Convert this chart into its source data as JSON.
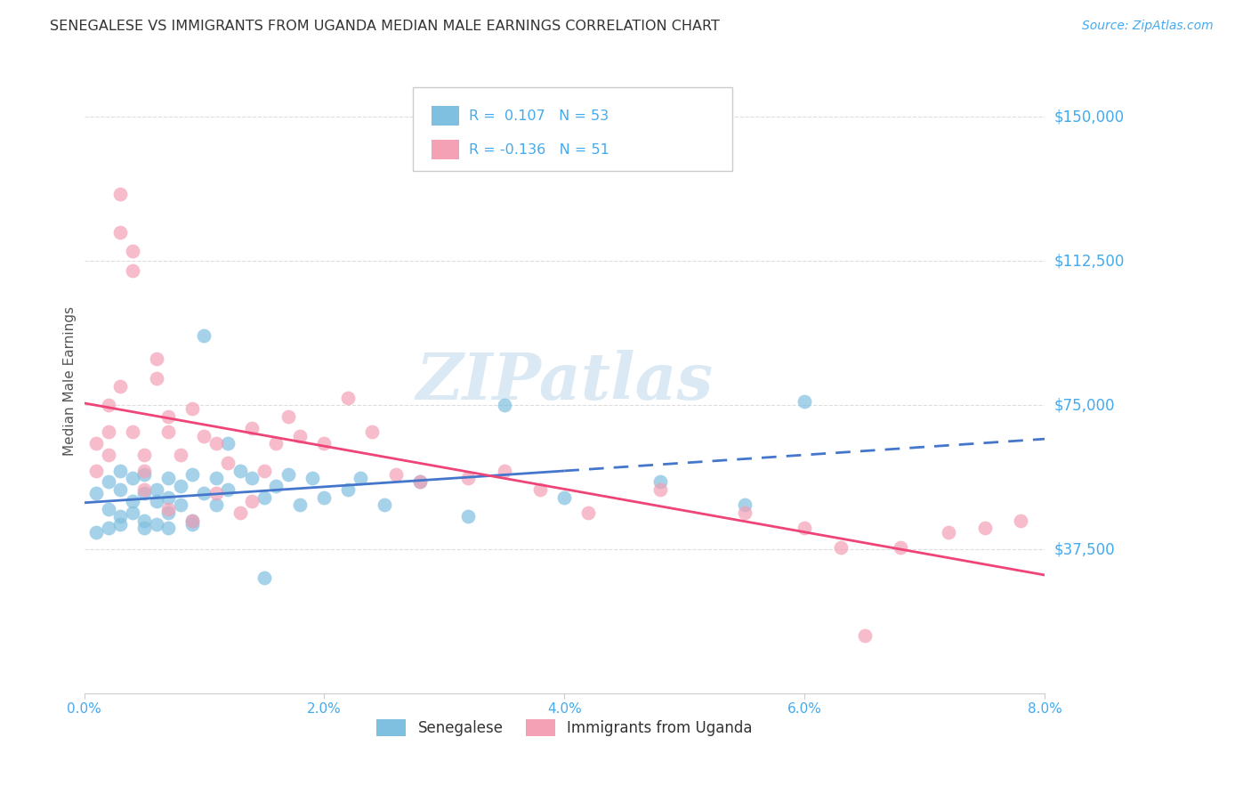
{
  "title": "SENEGALESE VS IMMIGRANTS FROM UGANDA MEDIAN MALE EARNINGS CORRELATION CHART",
  "source": "Source: ZipAtlas.com",
  "ylabel": "Median Male Earnings",
  "ytick_labels": [
    "$37,500",
    "$75,000",
    "$112,500",
    "$150,000"
  ],
  "ytick_values": [
    37500,
    75000,
    112500,
    150000
  ],
  "ymin": 0,
  "ymax": 162500,
  "xmin": 0.0,
  "xmax": 0.08,
  "xtick_positions": [
    0.0,
    0.02,
    0.04,
    0.06,
    0.08
  ],
  "xtick_labels": [
    "0.0%",
    "2.0%",
    "4.0%",
    "6.0%",
    "8.0%"
  ],
  "r_senegalese": 0.107,
  "n_senegalese": 53,
  "r_uganda": -0.136,
  "n_uganda": 51,
  "color_senegalese": "#7fbfdf",
  "color_uganda": "#f4a0b5",
  "color_trend_senegalese": "#4477cc",
  "color_trend_uganda": "#ee4477",
  "color_axis_labels": "#44aaee",
  "color_title": "#333333",
  "watermark_text": "ZIPatlas",
  "legend_label_senegalese": "R =  0.107   N = 53",
  "legend_label_uganda": "R = -0.136   N = 51",
  "bottom_legend_senegalese": "Senegalese",
  "bottom_legend_uganda": "Immigrants from Uganda",
  "senegalese_x": [
    0.001,
    0.002,
    0.002,
    0.003,
    0.003,
    0.003,
    0.004,
    0.004,
    0.004,
    0.005,
    0.005,
    0.005,
    0.006,
    0.006,
    0.006,
    0.007,
    0.007,
    0.007,
    0.008,
    0.008,
    0.009,
    0.009,
    0.01,
    0.01,
    0.011,
    0.011,
    0.012,
    0.012,
    0.013,
    0.014,
    0.015,
    0.016,
    0.017,
    0.018,
    0.019,
    0.02,
    0.022,
    0.023,
    0.025,
    0.028,
    0.032,
    0.035,
    0.04,
    0.048,
    0.055,
    0.06,
    0.001,
    0.002,
    0.003,
    0.005,
    0.007,
    0.009,
    0.015
  ],
  "senegalese_y": [
    52000,
    55000,
    48000,
    53000,
    46000,
    58000,
    50000,
    47000,
    56000,
    52000,
    45000,
    57000,
    50000,
    53000,
    44000,
    56000,
    51000,
    47000,
    54000,
    49000,
    57000,
    45000,
    93000,
    52000,
    56000,
    49000,
    65000,
    53000,
    58000,
    56000,
    51000,
    54000,
    57000,
    49000,
    56000,
    51000,
    53000,
    56000,
    49000,
    55000,
    46000,
    75000,
    51000,
    55000,
    49000,
    76000,
    42000,
    43000,
    44000,
    43000,
    43000,
    44000,
    30000
  ],
  "uganda_x": [
    0.001,
    0.001,
    0.002,
    0.002,
    0.003,
    0.003,
    0.004,
    0.004,
    0.005,
    0.005,
    0.006,
    0.006,
    0.007,
    0.007,
    0.008,
    0.009,
    0.01,
    0.011,
    0.012,
    0.013,
    0.014,
    0.015,
    0.016,
    0.017,
    0.018,
    0.02,
    0.022,
    0.024,
    0.026,
    0.028,
    0.032,
    0.035,
    0.038,
    0.042,
    0.048,
    0.055,
    0.06,
    0.063,
    0.065,
    0.068,
    0.072,
    0.075,
    0.078,
    0.002,
    0.003,
    0.004,
    0.005,
    0.007,
    0.009,
    0.011,
    0.014
  ],
  "uganda_y": [
    58000,
    65000,
    62000,
    68000,
    130000,
    120000,
    115000,
    110000,
    58000,
    53000,
    82000,
    87000,
    72000,
    68000,
    62000,
    74000,
    67000,
    65000,
    60000,
    47000,
    69000,
    58000,
    65000,
    72000,
    67000,
    65000,
    77000,
    68000,
    57000,
    55000,
    56000,
    58000,
    53000,
    47000,
    53000,
    47000,
    43000,
    38000,
    15000,
    38000,
    42000,
    43000,
    45000,
    75000,
    80000,
    68000,
    62000,
    48000,
    45000,
    52000,
    50000
  ]
}
